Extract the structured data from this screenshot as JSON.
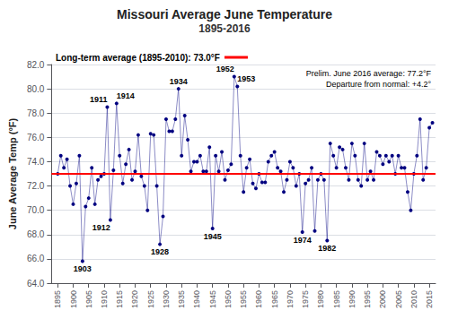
{
  "chart_data": {
    "type": "line",
    "title": "Missouri Average June Temperature",
    "subtitle": "1895-2016",
    "ylabel": "June Average Temp (°F)",
    "x": [
      1895,
      1896,
      1897,
      1898,
      1899,
      1900,
      1901,
      1902,
      1903,
      1904,
      1905,
      1906,
      1907,
      1908,
      1909,
      1910,
      1911,
      1912,
      1913,
      1914,
      1915,
      1916,
      1917,
      1918,
      1919,
      1920,
      1921,
      1922,
      1923,
      1924,
      1925,
      1926,
      1927,
      1928,
      1929,
      1930,
      1931,
      1932,
      1933,
      1934,
      1935,
      1936,
      1937,
      1938,
      1939,
      1940,
      1941,
      1942,
      1943,
      1944,
      1945,
      1946,
      1947,
      1948,
      1949,
      1950,
      1951,
      1952,
      1953,
      1954,
      1955,
      1956,
      1957,
      1958,
      1959,
      1960,
      1961,
      1962,
      1963,
      1964,
      1965,
      1966,
      1967,
      1968,
      1969,
      1970,
      1971,
      1972,
      1973,
      1974,
      1975,
      1976,
      1977,
      1978,
      1979,
      1980,
      1981,
      1982,
      1983,
      1984,
      1985,
      1986,
      1987,
      1988,
      1989,
      1990,
      1991,
      1992,
      1993,
      1994,
      1995,
      1996,
      1997,
      1998,
      1999,
      2000,
      2001,
      2002,
      2003,
      2004,
      2005,
      2006,
      2007,
      2008,
      2009,
      2010,
      2011,
      2012,
      2013,
      2014,
      2015,
      2016
    ],
    "values": [
      73.0,
      74.5,
      73.5,
      74.2,
      72.0,
      70.5,
      72.2,
      74.5,
      65.8,
      70.3,
      71.0,
      73.5,
      70.5,
      72.5,
      72.8,
      73.0,
      78.5,
      69.2,
      73.3,
      78.8,
      74.5,
      72.2,
      73.8,
      75.0,
      72.5,
      73.2,
      76.2,
      72.8,
      72.0,
      70.0,
      76.3,
      76.2,
      72.0,
      67.2,
      69.5,
      77.5,
      76.5,
      76.5,
      77.5,
      80.0,
      74.5,
      77.8,
      75.8,
      73.2,
      74.0,
      74.0,
      74.5,
      73.2,
      73.2,
      75.2,
      68.5,
      74.5,
      73.2,
      74.8,
      72.5,
      73.3,
      73.8,
      81.0,
      80.2,
      74.5,
      71.5,
      73.5,
      74.2,
      72.2,
      71.8,
      73.0,
      72.3,
      72.3,
      74.0,
      74.5,
      74.8,
      73.5,
      73.2,
      71.5,
      72.5,
      74.0,
      73.5,
      72.0,
      73.0,
      68.2,
      72.2,
      72.5,
      73.5,
      68.3,
      72.5,
      73.0,
      72.5,
      67.5,
      75.5,
      74.5,
      73.5,
      75.2,
      75.0,
      73.5,
      72.5,
      75.5,
      74.5,
      72.5,
      72.0,
      75.5,
      72.5,
      73.2,
      72.5,
      74.8,
      74.5,
      73.8,
      74.5,
      74.0,
      74.5,
      73.0,
      74.5,
      73.5,
      73.5,
      71.5,
      70.0,
      73.0,
      74.5,
      77.5,
      72.5,
      73.5,
      76.8,
      77.2
    ],
    "color": "#000080",
    "marker": "circle",
    "xlim": [
      1893,
      2017
    ],
    "xticks": [
      1895,
      1900,
      1905,
      1910,
      1915,
      1920,
      1925,
      1930,
      1935,
      1940,
      1945,
      1950,
      1955,
      1960,
      1965,
      1970,
      1975,
      1980,
      1985,
      1990,
      1995,
      2000,
      2005,
      2010,
      2015
    ],
    "ylim": [
      64.0,
      82.0
    ],
    "yticks": [
      {
        "value": 64.0,
        "label": "64.0"
      },
      {
        "value": 66.0,
        "label": "66.0"
      },
      {
        "value": 68.0,
        "label": "68.0"
      },
      {
        "value": 70.0,
        "label": "70.0"
      },
      {
        "value": 72.0,
        "label": "72.0"
      },
      {
        "value": 74.0,
        "label": "74.0"
      },
      {
        "value": 76.0,
        "label": "76.0"
      },
      {
        "value": 78.0,
        "label": "78.0"
      },
      {
        "value": 80.0,
        "label": "80.0"
      },
      {
        "value": 82.0,
        "label": "82.0"
      }
    ],
    "grid": "y",
    "hline": {
      "value": 73.0,
      "color": "#FF0000",
      "label": "Long-term average (1895-2010): 73.0°F"
    },
    "note": [
      "Prelim. June 2016 average: 77.2°F",
      "Departure from normal: +4.2°"
    ],
    "point_labels": [
      {
        "x": 1903,
        "y": 65.8,
        "text": "1903"
      },
      {
        "x": 1911,
        "y": 78.5,
        "text": "1911"
      },
      {
        "x": 1912,
        "y": 69.2,
        "text": "1912"
      },
      {
        "x": 1914,
        "y": 78.8,
        "text": "1914"
      },
      {
        "x": 1928,
        "y": 67.2,
        "text": "1928"
      },
      {
        "x": 1934,
        "y": 80.0,
        "text": "1934"
      },
      {
        "x": 1945,
        "y": 68.5,
        "text": "1945"
      },
      {
        "x": 1952,
        "y": 81.0,
        "text": "1952"
      },
      {
        "x": 1953,
        "y": 80.2,
        "text": "1953"
      },
      {
        "x": 1974,
        "y": 68.2,
        "text": "1974"
      },
      {
        "x": 1982,
        "y": 67.5,
        "text": "1982"
      }
    ]
  }
}
